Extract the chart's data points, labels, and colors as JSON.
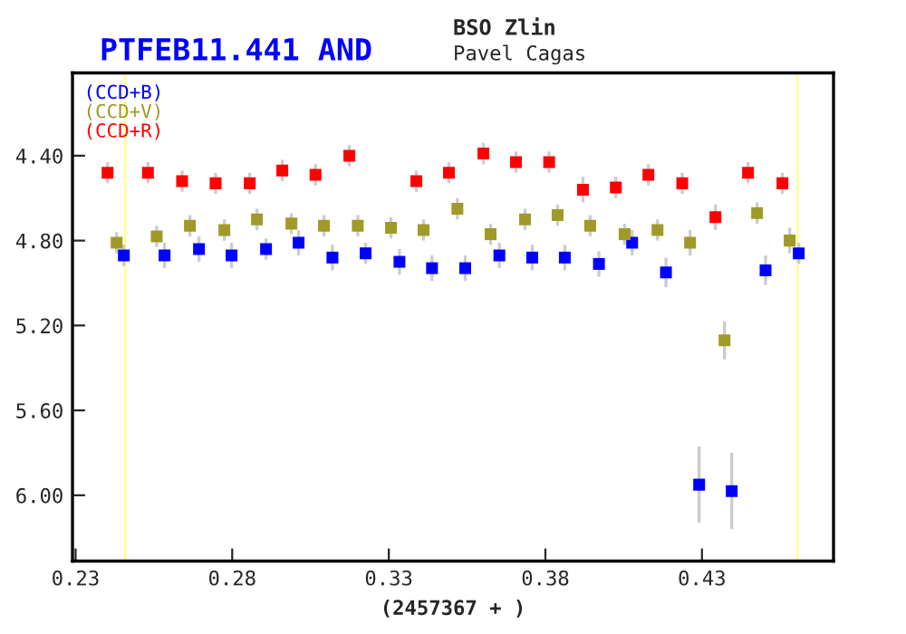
{
  "chart_data": {
    "type": "scatter",
    "title": "PTFEB11.441 AND",
    "subtitle": "BSO Zlin",
    "annotations": [
      "Pavel Cagas"
    ],
    "xlabel": "(2457367 + )",
    "xlim": [
      0.229,
      0.472
    ],
    "xticks": [
      0.23,
      0.28,
      0.33,
      0.38,
      0.43
    ],
    "ylim": [
      6.31,
      4.01
    ],
    "yticks": [
      {
        "value": 4.4,
        "label": "4.40"
      },
      {
        "value": 4.8,
        "label": "4.80"
      },
      {
        "value": 5.2,
        "label": "5.20"
      },
      {
        "value": 5.6,
        "label": "5.60"
      },
      {
        "value": 6.0,
        "label": "6.00"
      }
    ],
    "marker": "square",
    "legend": "top left",
    "grid": false,
    "ref_lines": [
      {
        "axis": "x",
        "value": 0.2458,
        "color": "#ffff99"
      },
      {
        "axis": "x",
        "value": 0.4605,
        "color": "#ffff99"
      }
    ],
    "series": [
      {
        "name": "(CCD+B)",
        "color": "#0000ff",
        "x": [
          0.2454,
          0.2584,
          0.2694,
          0.2798,
          0.2908,
          0.3012,
          0.312,
          0.3226,
          0.3334,
          0.3438,
          0.3544,
          0.3653,
          0.3758,
          0.3862,
          0.3971,
          0.4077,
          0.4185,
          0.4291,
          0.4395,
          0.4503,
          0.4609
        ],
        "values": [
          4.87,
          4.87,
          4.84,
          4.87,
          4.84,
          4.81,
          4.88,
          4.86,
          4.9,
          4.93,
          4.93,
          4.87,
          4.88,
          4.88,
          4.91,
          4.81,
          4.95,
          5.95,
          5.98,
          4.94,
          4.86
        ],
        "errors": [
          0.05,
          0.06,
          0.06,
          0.06,
          0.05,
          0.06,
          0.06,
          0.05,
          0.06,
          0.06,
          0.06,
          0.06,
          0.06,
          0.06,
          0.06,
          0.06,
          0.07,
          0.18,
          0.18,
          0.07,
          0.05
        ]
      },
      {
        "name": "(CCD+V)",
        "color": "#a09a28",
        "x": [
          0.2431,
          0.2559,
          0.2665,
          0.2775,
          0.2879,
          0.2989,
          0.3093,
          0.3201,
          0.3307,
          0.3411,
          0.3519,
          0.3625,
          0.3735,
          0.3839,
          0.3943,
          0.4053,
          0.4158,
          0.4262,
          0.4372,
          0.4476,
          0.458
        ],
        "values": [
          4.81,
          4.78,
          4.73,
          4.75,
          4.7,
          4.72,
          4.73,
          4.73,
          4.74,
          4.75,
          4.65,
          4.77,
          4.7,
          4.68,
          4.73,
          4.77,
          4.75,
          4.81,
          5.27,
          4.67,
          4.8
        ],
        "errors": [
          0.05,
          0.05,
          0.05,
          0.05,
          0.05,
          0.05,
          0.05,
          0.05,
          0.05,
          0.05,
          0.05,
          0.05,
          0.05,
          0.05,
          0.05,
          0.05,
          0.05,
          0.06,
          0.09,
          0.05,
          0.06
        ]
      },
      {
        "name": "(CCD+R)",
        "color": "#ff0000",
        "x": [
          0.2402,
          0.2531,
          0.264,
          0.2747,
          0.2856,
          0.296,
          0.3066,
          0.3174,
          0.3388,
          0.3492,
          0.3602,
          0.3706,
          0.3812,
          0.392,
          0.4025,
          0.4129,
          0.4237,
          0.4343,
          0.4447,
          0.4557
        ],
        "values": [
          4.48,
          4.48,
          4.52,
          4.53,
          4.53,
          4.47,
          4.49,
          4.4,
          4.52,
          4.48,
          4.39,
          4.43,
          4.43,
          4.56,
          4.55,
          4.49,
          4.53,
          4.69,
          4.48,
          4.53
        ],
        "errors": [
          0.05,
          0.05,
          0.05,
          0.05,
          0.05,
          0.05,
          0.05,
          0.05,
          0.05,
          0.05,
          0.05,
          0.05,
          0.05,
          0.06,
          0.05,
          0.05,
          0.05,
          0.06,
          0.05,
          0.05
        ]
      }
    ]
  }
}
